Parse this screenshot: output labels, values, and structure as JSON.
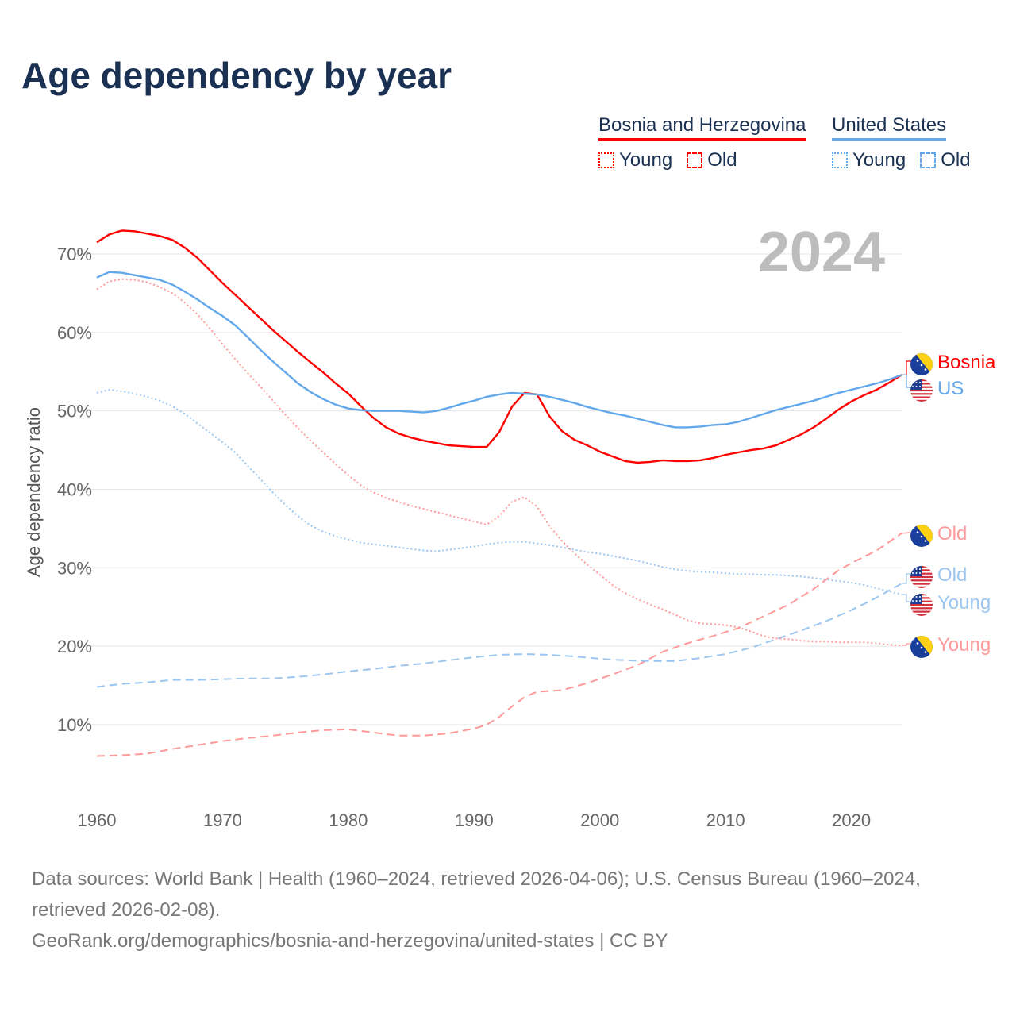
{
  "title": "Age dependency by year",
  "legend": {
    "groups": [
      {
        "name": "Bosnia and Herzegovina",
        "color": "#ff0000",
        "light": "#ff9a9a",
        "items": [
          "Young",
          "Old"
        ]
      },
      {
        "name": "United States",
        "color": "#64a8ec",
        "light": "#9cc6f0",
        "items": [
          "Young",
          "Old"
        ]
      }
    ]
  },
  "year_label": "2024",
  "chart_data": {
    "type": "line",
    "title": "Age dependency by year",
    "xlabel": "",
    "ylabel": "Age dependency ratio",
    "xlim": [
      1960,
      2024
    ],
    "ylim": [
      2,
      72
    ],
    "xticks": [
      1960,
      1970,
      1980,
      1990,
      2000,
      2010,
      2020
    ],
    "xtick_labels": [
      "1960",
      "1970",
      "1980",
      "1990",
      "2000",
      "2010",
      "2020"
    ],
    "yticks": [
      10,
      20,
      30,
      40,
      50,
      60,
      70
    ],
    "ytick_labels": [
      "10%",
      "20%",
      "30%",
      "40%",
      "50%",
      "60%",
      "70%"
    ],
    "grid": true,
    "series": [
      {
        "name": "Bosnia",
        "country": "Bosnia and Herzegovina",
        "kind": "Total",
        "color": "#ff0000",
        "dash": "solid",
        "flag": "ba",
        "x": [
          1960,
          1961,
          1962,
          1963,
          1964,
          1965,
          1966,
          1967,
          1968,
          1969,
          1970,
          1971,
          1972,
          1973,
          1974,
          1975,
          1976,
          1977,
          1978,
          1979,
          1980,
          1981,
          1982,
          1983,
          1984,
          1985,
          1986,
          1987,
          1988,
          1989,
          1990,
          1991,
          1992,
          1993,
          1994,
          1995,
          1996,
          1997,
          1998,
          1999,
          2000,
          2001,
          2002,
          2003,
          2004,
          2005,
          2006,
          2007,
          2008,
          2009,
          2010,
          2011,
          2012,
          2013,
          2014,
          2015,
          2016,
          2017,
          2018,
          2019,
          2020,
          2021,
          2022,
          2023,
          2024
        ],
        "y": [
          71.5,
          72.5,
          73,
          72.9,
          72.6,
          72.3,
          71.8,
          70.8,
          69.5,
          67.9,
          66.3,
          64.8,
          63.3,
          61.8,
          60.3,
          58.9,
          57.5,
          56.2,
          54.9,
          53.5,
          52.2,
          50.6,
          49.1,
          47.9,
          47.1,
          46.6,
          46.2,
          45.9,
          45.6,
          45.5,
          45.4,
          45.4,
          47.3,
          50.5,
          52.3,
          52.1,
          49.3,
          47.4,
          46.3,
          45.6,
          44.8,
          44.2,
          43.6,
          43.4,
          43.5,
          43.7,
          43.6,
          43.6,
          43.7,
          44.0,
          44.4,
          44.7,
          45.0,
          45.2,
          45.6,
          46.3,
          47.0,
          47.9,
          49.0,
          50.2,
          51.2,
          52.0,
          52.7,
          53.6,
          54.6
        ]
      },
      {
        "name": "US",
        "country": "United States",
        "kind": "Total",
        "color": "#64a8ec",
        "dash": "solid",
        "flag": "us",
        "x": [
          1960,
          1961,
          1962,
          1963,
          1964,
          1965,
          1966,
          1967,
          1968,
          1969,
          1970,
          1971,
          1972,
          1973,
          1974,
          1975,
          1976,
          1977,
          1978,
          1979,
          1980,
          1981,
          1982,
          1983,
          1984,
          1985,
          1986,
          1987,
          1988,
          1989,
          1990,
          1991,
          1992,
          1993,
          1994,
          1995,
          1996,
          1997,
          1998,
          1999,
          2000,
          2001,
          2002,
          2003,
          2004,
          2005,
          2006,
          2007,
          2008,
          2009,
          2010,
          2011,
          2012,
          2013,
          2014,
          2015,
          2016,
          2017,
          2018,
          2019,
          2020,
          2021,
          2022,
          2023,
          2024
        ],
        "y": [
          67.0,
          67.7,
          67.6,
          67.3,
          67.0,
          66.7,
          66.1,
          65.2,
          64.2,
          63.1,
          62.1,
          60.9,
          59.4,
          57.8,
          56.3,
          54.9,
          53.5,
          52.4,
          51.5,
          50.8,
          50.3,
          50.1,
          50.0,
          50.0,
          50.0,
          49.9,
          49.8,
          50.0,
          50.4,
          50.9,
          51.3,
          51.8,
          52.1,
          52.3,
          52.2,
          52.1,
          51.8,
          51.4,
          51.0,
          50.5,
          50.1,
          49.7,
          49.4,
          49.0,
          48.6,
          48.2,
          47.9,
          47.9,
          48.0,
          48.2,
          48.3,
          48.6,
          49.1,
          49.6,
          50.1,
          50.5,
          50.9,
          51.3,
          51.8,
          52.3,
          52.7,
          53.1,
          53.5,
          54.0,
          54.6
        ]
      },
      {
        "name": "Old",
        "country": "Bosnia and Herzegovina",
        "kind": "Old",
        "color": "#ff9a9a",
        "dash": "dashed",
        "flag": "ba",
        "x": [
          1960,
          1962,
          1964,
          1966,
          1968,
          1970,
          1972,
          1974,
          1976,
          1978,
          1980,
          1982,
          1984,
          1986,
          1988,
          1990,
          1991,
          1992,
          1993,
          1994,
          1995,
          1997,
          1999,
          2001,
          2003,
          2005,
          2007,
          2009,
          2011,
          2013,
          2015,
          2017,
          2019,
          2020,
          2022,
          2024
        ],
        "y": [
          6.0,
          6.1,
          6.3,
          6.9,
          7.4,
          7.9,
          8.3,
          8.6,
          9.0,
          9.3,
          9.4,
          9.0,
          8.6,
          8.6,
          8.9,
          9.5,
          10.0,
          11.0,
          12.3,
          13.5,
          14.2,
          14.4,
          15.3,
          16.4,
          17.6,
          19.3,
          20.4,
          21.3,
          22.3,
          23.8,
          25.3,
          27.3,
          29.7,
          30.6,
          32.2,
          34.4
        ]
      },
      {
        "name": "Old",
        "country": "United States",
        "kind": "Old",
        "color": "#9cc6f0",
        "dash": "dashed",
        "flag": "us",
        "x": [
          1960,
          1962,
          1964,
          1966,
          1968,
          1970,
          1972,
          1974,
          1976,
          1978,
          1980,
          1982,
          1984,
          1986,
          1988,
          1990,
          1992,
          1994,
          1996,
          1998,
          2000,
          2002,
          2004,
          2006,
          2008,
          2010,
          2012,
          2014,
          2016,
          2018,
          2020,
          2022,
          2024
        ],
        "y": [
          14.8,
          15.2,
          15.4,
          15.7,
          15.7,
          15.8,
          15.9,
          15.9,
          16.1,
          16.4,
          16.8,
          17.1,
          17.5,
          17.8,
          18.2,
          18.6,
          18.9,
          19.0,
          18.9,
          18.7,
          18.4,
          18.2,
          18.1,
          18.1,
          18.5,
          19.0,
          19.8,
          20.9,
          22.0,
          23.2,
          24.6,
          26.2,
          28.0
        ]
      },
      {
        "name": "Young",
        "country": "United States",
        "kind": "Young",
        "color": "#9cc6f0",
        "dash": "dotted",
        "flag": "us",
        "x": [
          1960,
          1961,
          1962,
          1963,
          1964,
          1965,
          1966,
          1967,
          1968,
          1969,
          1970,
          1971,
          1972,
          1973,
          1974,
          1975,
          1976,
          1977,
          1978,
          1979,
          1980,
          1981,
          1982,
          1983,
          1984,
          1985,
          1986,
          1987,
          1988,
          1989,
          1990,
          1991,
          1992,
          1993,
          1994,
          1995,
          1996,
          1997,
          1998,
          1999,
          2000,
          2001,
          2002,
          2003,
          2004,
          2005,
          2006,
          2007,
          2008,
          2009,
          2010,
          2011,
          2012,
          2013,
          2014,
          2015,
          2016,
          2017,
          2018,
          2019,
          2020,
          2021,
          2022,
          2023,
          2024
        ],
        "y": [
          52.3,
          52.7,
          52.5,
          52.2,
          51.8,
          51.3,
          50.6,
          49.6,
          48.4,
          47.2,
          46.0,
          44.7,
          43.0,
          41.3,
          39.6,
          38.0,
          36.6,
          35.4,
          34.6,
          34.0,
          33.6,
          33.2,
          33.0,
          32.8,
          32.6,
          32.4,
          32.2,
          32.1,
          32.3,
          32.5,
          32.7,
          33.0,
          33.2,
          33.3,
          33.3,
          33.1,
          32.9,
          32.6,
          32.3,
          32.0,
          31.8,
          31.5,
          31.2,
          30.9,
          30.5,
          30.1,
          29.8,
          29.6,
          29.5,
          29.4,
          29.3,
          29.2,
          29.2,
          29.1,
          29.1,
          29.0,
          28.9,
          28.7,
          28.5,
          28.3,
          28.1,
          27.8,
          27.4,
          27.0,
          26.6
        ]
      },
      {
        "name": "Young",
        "country": "Bosnia and Herzegovina",
        "kind": "Young",
        "color": "#ff9a9a",
        "dash": "dotted",
        "flag": "ba",
        "x": [
          1960,
          1961,
          1962,
          1963,
          1964,
          1965,
          1966,
          1967,
          1968,
          1969,
          1970,
          1971,
          1972,
          1973,
          1974,
          1975,
          1976,
          1977,
          1978,
          1979,
          1980,
          1981,
          1982,
          1983,
          1984,
          1985,
          1986,
          1987,
          1988,
          1989,
          1990,
          1991,
          1992,
          1993,
          1994,
          1995,
          1996,
          1997,
          1998,
          1999,
          2000,
          2001,
          2002,
          2003,
          2004,
          2005,
          2006,
          2007,
          2008,
          2009,
          2010,
          2011,
          2012,
          2013,
          2014,
          2015,
          2016,
          2017,
          2018,
          2019,
          2020,
          2021,
          2022,
          2023,
          2024
        ],
        "y": [
          65.5,
          66.5,
          66.8,
          66.7,
          66.4,
          65.8,
          65.0,
          63.8,
          62.3,
          60.5,
          58.5,
          56.6,
          54.8,
          53.1,
          51.3,
          49.5,
          47.8,
          46.2,
          44.7,
          43.2,
          41.8,
          40.5,
          39.6,
          38.9,
          38.4,
          37.9,
          37.5,
          37.1,
          36.7,
          36.3,
          35.9,
          35.5,
          36.6,
          38.4,
          39.0,
          37.8,
          35.3,
          33.4,
          31.8,
          30.4,
          29.1,
          27.8,
          26.8,
          26.0,
          25.3,
          24.7,
          24.0,
          23.3,
          22.9,
          22.8,
          22.7,
          22.4,
          21.9,
          21.3,
          21.0,
          20.9,
          20.7,
          20.6,
          20.6,
          20.5,
          20.5,
          20.5,
          20.4,
          20.2,
          20.1
        ]
      }
    ]
  },
  "footer": {
    "sources": "Data sources: World Bank | Health (1960–2024, retrieved 2026-04-06); U.S. Census Bureau (1960–2024, retrieved 2026-02-08).",
    "link": "GeoRank.org/demographics/bosnia-and-herzegovina/united-states | CC BY"
  }
}
